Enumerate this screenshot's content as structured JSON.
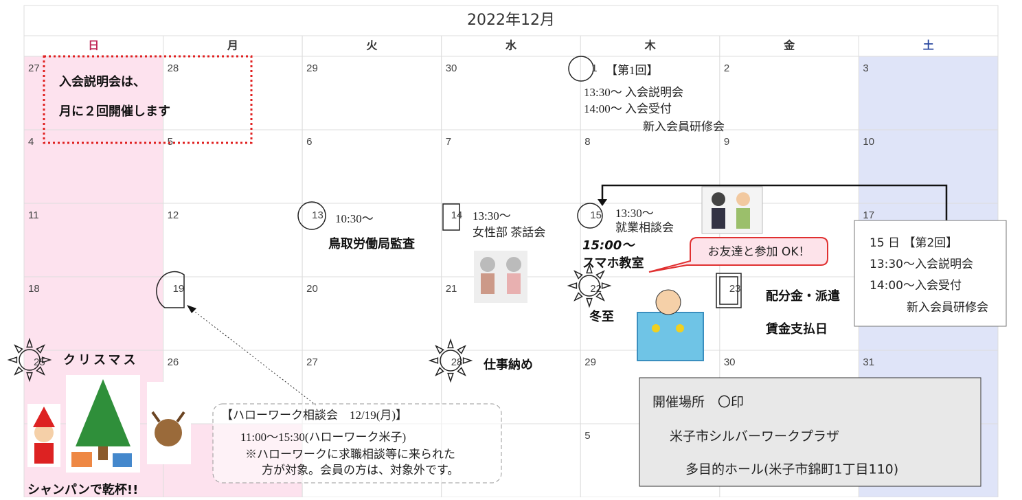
{
  "calendar": {
    "title": "2022年12月",
    "weekdays": [
      "日",
      "月",
      "火",
      "水",
      "木",
      "金",
      "土"
    ],
    "weeks": [
      [
        "27",
        "28",
        "29",
        "30",
        "1",
        "2",
        "3"
      ],
      [
        "4",
        "5",
        "6",
        "7",
        "8",
        "9",
        "10"
      ],
      [
        "11",
        "12",
        "13",
        "14",
        "15",
        null,
        "17"
      ],
      [
        "18",
        "19",
        "20",
        "21",
        "22",
        "23",
        null
      ],
      [
        "25",
        "26",
        "27",
        "28",
        "29",
        "30",
        "31"
      ],
      [
        null,
        null,
        null,
        null,
        "5",
        null,
        null
      ]
    ]
  },
  "notice": [
    "入会説明会は、",
    "月に２回開催します"
  ],
  "events": {
    "day1": [
      "【第1回】",
      "13:30～ 入会説明会",
      "14:00～ 入会受付",
      "新入会員研修会"
    ],
    "day13": [
      "10:30～",
      "鳥取労働局監査"
    ],
    "day14": [
      "13:30～",
      "女性部 茶話会"
    ],
    "day15": [
      "13:30～",
      "就業相談会",
      "15:00～",
      "スマホ教室"
    ],
    "callout": "お友達と参加 OK！",
    "day22": "冬至",
    "day23": [
      "配分金・派遣",
      "賃金支払日"
    ],
    "second_session": [
      "15 日 【第2回】",
      "13:30～入会説明会",
      "14:00～入会受付",
      "新入会員研修会"
    ],
    "day25": [
      "クリスマス",
      "シャンパンで乾杯!!"
    ],
    "day28": "仕事納め"
  },
  "hellowork": [
    "【ハローワーク相談会　12/19(月)】",
    "11:00～15:30(ハローワーク米子)",
    "※ハローワークに求職相談等に来られた",
    "方が対象。会員の方は、対象外です。"
  ],
  "venue": [
    "開催場所　〇印",
    "米子市シルバーワークプラザ",
    "多目的ホール(米子市錦町1丁目110)"
  ]
}
